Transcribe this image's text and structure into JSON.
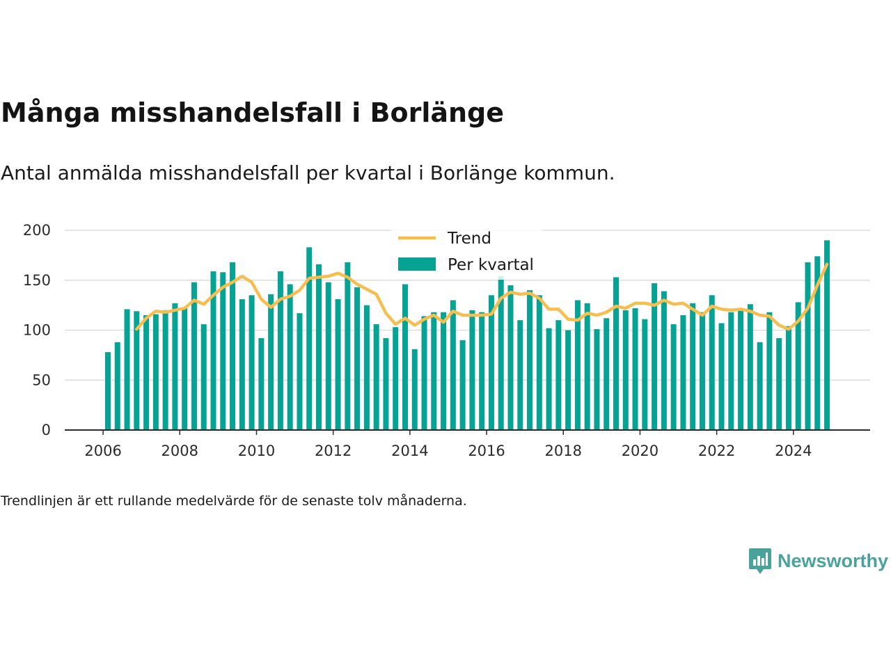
{
  "header": {
    "title": "Många misshandelsfall i Borlänge",
    "subtitle": "Antal anmälda misshandelsfall per kvartal i Borlänge kommun."
  },
  "footer": {
    "note": "Trendlinjen är ett rullande medelvärde för de senaste tolv månaderna.",
    "brand": "Newsworthy"
  },
  "colors": {
    "bar": "#06a293",
    "trend": "#f5be4f",
    "grid": "#dddddd",
    "axis": "#2a2a2a",
    "brand": "#4aa39a"
  },
  "icons": {
    "brand_logo": "bar-chart-speech-bubble-icon"
  },
  "chart_data": {
    "type": "bar",
    "ylim": [
      0,
      200
    ],
    "yticks": [
      0,
      50,
      100,
      150,
      200
    ],
    "xticks": [
      "2006",
      "2008",
      "2010",
      "2012",
      "2014",
      "2016",
      "2018",
      "2020",
      "2022",
      "2024"
    ],
    "x_range": [
      2005.0,
      2026.0
    ],
    "grid": true,
    "legend_position": "top-center",
    "series": [
      {
        "name": "Per kvartal",
        "kind": "bar",
        "x": [
          "2006-Q1",
          "2006-Q2",
          "2006-Q3",
          "2006-Q4",
          "2007-Q1",
          "2007-Q2",
          "2007-Q3",
          "2007-Q4",
          "2008-Q1",
          "2008-Q2",
          "2008-Q3",
          "2008-Q4",
          "2009-Q1",
          "2009-Q2",
          "2009-Q3",
          "2009-Q4",
          "2010-Q1",
          "2010-Q2",
          "2010-Q3",
          "2010-Q4",
          "2011-Q1",
          "2011-Q2",
          "2011-Q3",
          "2011-Q4",
          "2012-Q1",
          "2012-Q2",
          "2012-Q3",
          "2012-Q4",
          "2013-Q1",
          "2013-Q2",
          "2013-Q3",
          "2013-Q4",
          "2014-Q1",
          "2014-Q2",
          "2014-Q3",
          "2014-Q4",
          "2015-Q1",
          "2015-Q2",
          "2015-Q3",
          "2015-Q4",
          "2016-Q1",
          "2016-Q2",
          "2016-Q3",
          "2016-Q4",
          "2017-Q1",
          "2017-Q2",
          "2017-Q3",
          "2017-Q4",
          "2018-Q1",
          "2018-Q2",
          "2018-Q3",
          "2018-Q4",
          "2019-Q1",
          "2019-Q2",
          "2019-Q3",
          "2019-Q4",
          "2020-Q1",
          "2020-Q2",
          "2020-Q3",
          "2020-Q4",
          "2021-Q1",
          "2021-Q2",
          "2021-Q3",
          "2021-Q4",
          "2022-Q1",
          "2022-Q2",
          "2022-Q3",
          "2022-Q4",
          "2023-Q1",
          "2023-Q2",
          "2023-Q3",
          "2023-Q4",
          "2024-Q1",
          "2024-Q2",
          "2024-Q3",
          "2024-Q4"
        ],
        "values": [
          78,
          88,
          121,
          119,
          115,
          116,
          120,
          127,
          122,
          148,
          106,
          159,
          158,
          168,
          131,
          135,
          92,
          136,
          159,
          146,
          117,
          183,
          166,
          148,
          131,
          168,
          143,
          125,
          106,
          92,
          103,
          146,
          81,
          114,
          118,
          118,
          130,
          90,
          120,
          118,
          135,
          154,
          145,
          110,
          140,
          135,
          102,
          110,
          100,
          130,
          127,
          101,
          112,
          153,
          120,
          122,
          111,
          147,
          139,
          106,
          115,
          127,
          118,
          135,
          107,
          118,
          122,
          126,
          88,
          118,
          92,
          104,
          128,
          168,
          174,
          190
        ]
      },
      {
        "name": "Trend",
        "kind": "line",
        "x": [
          "2006-Q4",
          "2007-Q1",
          "2007-Q2",
          "2007-Q3",
          "2007-Q4",
          "2008-Q1",
          "2008-Q2",
          "2008-Q3",
          "2008-Q4",
          "2009-Q1",
          "2009-Q2",
          "2009-Q3",
          "2009-Q4",
          "2010-Q1",
          "2010-Q2",
          "2010-Q3",
          "2010-Q4",
          "2011-Q1",
          "2011-Q2",
          "2011-Q3",
          "2011-Q4",
          "2012-Q1",
          "2012-Q2",
          "2012-Q3",
          "2012-Q4",
          "2013-Q1",
          "2013-Q2",
          "2013-Q3",
          "2013-Q4",
          "2014-Q1",
          "2014-Q2",
          "2014-Q3",
          "2014-Q4",
          "2015-Q1",
          "2015-Q2",
          "2015-Q3",
          "2015-Q4",
          "2016-Q1",
          "2016-Q2",
          "2016-Q3",
          "2016-Q4",
          "2017-Q1",
          "2017-Q2",
          "2017-Q3",
          "2017-Q4",
          "2018-Q1",
          "2018-Q2",
          "2018-Q3",
          "2018-Q4",
          "2019-Q1",
          "2019-Q2",
          "2019-Q3",
          "2019-Q4",
          "2020-Q1",
          "2020-Q2",
          "2020-Q3",
          "2020-Q4",
          "2021-Q1",
          "2021-Q2",
          "2021-Q3",
          "2021-Q4",
          "2022-Q1",
          "2022-Q2",
          "2022-Q3",
          "2022-Q4",
          "2023-Q1",
          "2023-Q2",
          "2023-Q3",
          "2023-Q4",
          "2024-Q1",
          "2024-Q2",
          "2024-Q3",
          "2024-Q4"
        ],
        "values": [
          101,
          112,
          119,
          118,
          120,
          122,
          130,
          126,
          135,
          143,
          148,
          154,
          148,
          131,
          123,
          131,
          134,
          140,
          152,
          153,
          154,
          157,
          153,
          146,
          141,
          136,
          117,
          106,
          112,
          105,
          111,
          115,
          108,
          119,
          115,
          115,
          115,
          116,
          132,
          138,
          136,
          137,
          132,
          121,
          121,
          111,
          110,
          117,
          115,
          118,
          124,
          122,
          127,
          127,
          125,
          130,
          126,
          127,
          121,
          115,
          124,
          121,
          120,
          121,
          119,
          115,
          114,
          105,
          101,
          109,
          122,
          145,
          166
        ]
      }
    ]
  }
}
